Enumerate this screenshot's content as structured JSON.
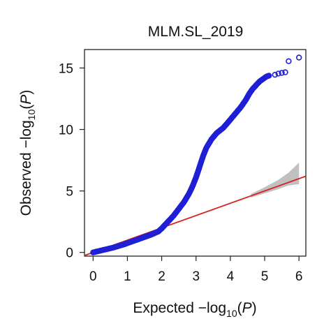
{
  "chart_data": {
    "type": "scatter",
    "title": "MLM.SL_2019",
    "xlabel": {
      "pre": "Expected −log",
      "sub": "10",
      "post": "(",
      "var": "P",
      "end": ")"
    },
    "ylabel": {
      "pre": "Observed −log",
      "sub": "10",
      "post": "(",
      "var": "P",
      "end": ")"
    },
    "xlim": [
      -0.25,
      6.2
    ],
    "ylim": [
      -0.3,
      16.5
    ],
    "xticks": [
      0,
      1,
      2,
      3,
      4,
      5,
      6
    ],
    "yticks": [
      0,
      5,
      10,
      15
    ],
    "grid": false,
    "legend": "none",
    "colors": {
      "points": "#1f1fd6",
      "reference_line": "#d42020",
      "confidence_band": "#b9b9b9"
    },
    "reference_line": {
      "x": [
        -0.25,
        6.2
      ],
      "y": [
        -0.25,
        6.2
      ]
    },
    "confidence_band": {
      "x": [
        4.6,
        5.0,
        5.4,
        5.7,
        6.0
      ],
      "lower": [
        4.45,
        4.8,
        5.15,
        5.45,
        5.55
      ],
      "upper": [
        4.75,
        5.3,
        5.9,
        6.5,
        7.3
      ]
    },
    "qq_curve": {
      "x": [
        0.0,
        0.3,
        0.6,
        0.9,
        1.2,
        1.5,
        1.7,
        1.9,
        2.0,
        2.1,
        2.2,
        2.35,
        2.5,
        2.65,
        2.8,
        2.9,
        3.0,
        3.1,
        3.2,
        3.3,
        3.45,
        3.6,
        3.8,
        4.0,
        4.15,
        4.3,
        4.45,
        4.55,
        4.65,
        4.75,
        4.85,
        4.95,
        5.05,
        5.15
      ],
      "y": [
        0.0,
        0.2,
        0.4,
        0.65,
        0.95,
        1.25,
        1.45,
        1.7,
        1.95,
        2.25,
        2.55,
        3.0,
        3.55,
        4.1,
        4.8,
        5.4,
        6.1,
        6.95,
        7.8,
        8.5,
        9.2,
        9.7,
        10.15,
        10.8,
        11.3,
        11.8,
        12.4,
        12.9,
        13.3,
        13.6,
        13.9,
        14.1,
        14.3,
        14.4
      ]
    },
    "outliers": {
      "x": [
        5.3,
        5.4,
        5.5,
        5.6,
        5.7,
        6.0
      ],
      "y": [
        14.45,
        14.55,
        14.6,
        14.65,
        15.55,
        15.85
      ]
    }
  }
}
